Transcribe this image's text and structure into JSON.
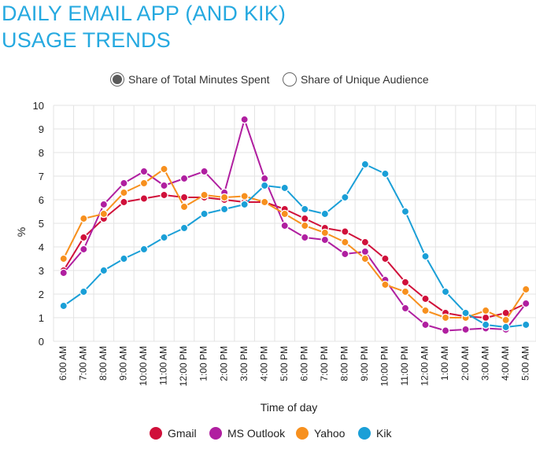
{
  "title_lines": [
    "DAILY EMAIL APP (AND KIK)",
    "USAGE TRENDS"
  ],
  "toggle": {
    "options": [
      "Share of Total Minutes Spent",
      "Share of Unique Audience"
    ],
    "selected_index": 0
  },
  "chart_data": {
    "type": "line",
    "title": "DAILY EMAIL APP (AND KIK) USAGE TRENDS",
    "xlabel": "Time of day",
    "ylabel": "%",
    "ylim": [
      0,
      10
    ],
    "yticks": [
      "0",
      "1",
      "2",
      "3",
      "4",
      "5",
      "6",
      "7",
      "8",
      "9",
      "10"
    ],
    "grid": true,
    "legend_position": "bottom",
    "categories": [
      "6:00 AM",
      "7:00 AM",
      "8:00 AM",
      "9:00 AM",
      "10:00 AM",
      "11:00 AM",
      "12:00 PM",
      "1:00 PM",
      "2:00 PM",
      "3:00 PM",
      "4:00 PM",
      "5:00 PM",
      "6:00 PM",
      "7:00 PM",
      "8:00 PM",
      "9:00 PM",
      "10:00 PM",
      "11:00 PM",
      "12:00 AM",
      "1:00 AM",
      "2:00 AM",
      "3:00 AM",
      "4:00 AM",
      "5:00 AM"
    ],
    "series": [
      {
        "name": "Gmail",
        "color": "#d0103a",
        "values": [
          3.0,
          4.4,
          5.2,
          5.9,
          6.05,
          6.2,
          6.1,
          6.1,
          6.0,
          5.9,
          5.9,
          5.6,
          5.2,
          4.8,
          4.65,
          4.2,
          3.5,
          2.5,
          1.8,
          1.2,
          1.05,
          1.0,
          1.2,
          1.6
        ]
      },
      {
        "name": "MS Outlook",
        "color": "#b01fa0",
        "values": [
          2.9,
          3.9,
          5.8,
          6.7,
          7.2,
          6.6,
          6.9,
          7.2,
          6.3,
          9.4,
          6.9,
          4.9,
          4.4,
          4.3,
          3.7,
          3.8,
          2.6,
          1.4,
          0.7,
          0.45,
          0.5,
          0.55,
          0.5,
          1.6
        ]
      },
      {
        "name": "Yahoo",
        "color": "#f7901e",
        "values": [
          3.5,
          5.2,
          5.4,
          6.3,
          6.7,
          7.3,
          5.7,
          6.2,
          6.1,
          6.15,
          5.9,
          5.4,
          4.9,
          4.6,
          4.2,
          3.5,
          2.4,
          2.1,
          1.3,
          1.0,
          1.0,
          1.3,
          0.9,
          2.2
        ]
      },
      {
        "name": "Kik",
        "color": "#1a9fd7",
        "values": [
          1.5,
          2.1,
          3.0,
          3.5,
          3.9,
          4.4,
          4.8,
          5.4,
          5.6,
          5.8,
          6.6,
          6.5,
          5.6,
          5.4,
          6.1,
          7.5,
          7.1,
          5.5,
          3.6,
          2.1,
          1.2,
          0.7,
          0.6,
          0.7
        ]
      }
    ]
  }
}
